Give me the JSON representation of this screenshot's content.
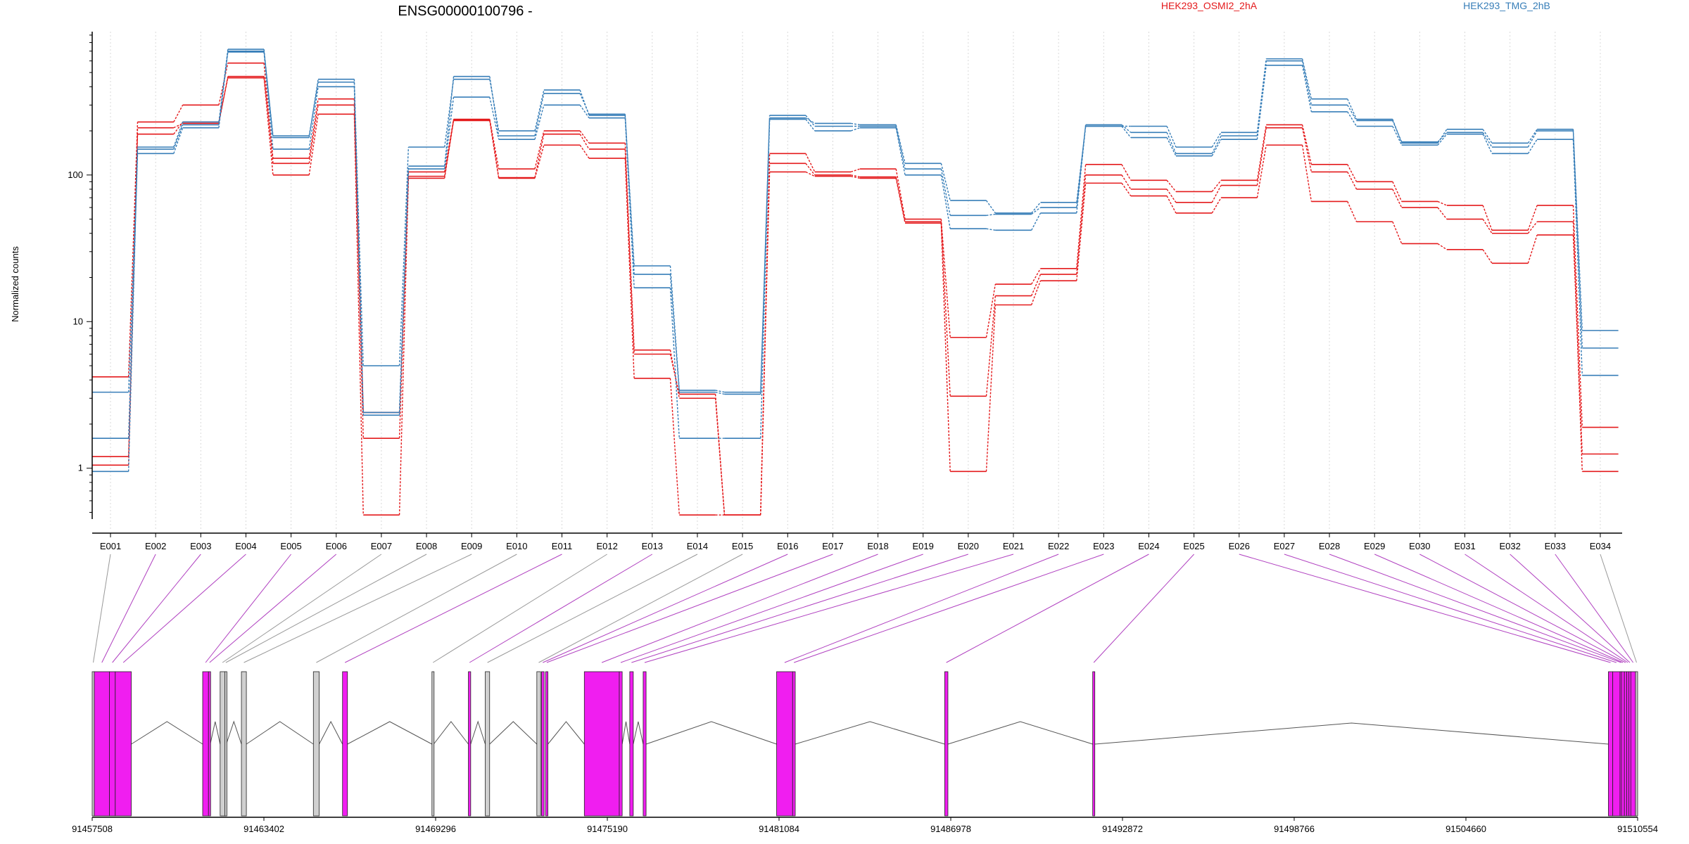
{
  "chart_data": {
    "type": "line",
    "title": "ENSG00000100796 -",
    "ylabel": "Normalized counts",
    "xlabel": "",
    "y_scale": "log",
    "ylim": [
      0.45,
      950
    ],
    "y_ticks": [
      {
        "value": 1,
        "label": "1"
      },
      {
        "value": 10,
        "label": "10"
      },
      {
        "value": 100,
        "label": "100"
      }
    ],
    "grid": "vertical dotted lines at exons",
    "legend_placement": "top-right",
    "colors": {
      "HEK293_OSMI2_2hA": "#e41a1c",
      "HEK293_TMG_2hB": "#377eb8",
      "exon_fill": "#f01ef0",
      "exon_gray": "#d0d0d0",
      "link_magenta": "#b040c0",
      "link_gray": "#999999"
    },
    "categories": [
      "E001",
      "E002",
      "E003",
      "E004",
      "E005",
      "E006",
      "E007",
      "E008",
      "E009",
      "E010",
      "E011",
      "E012",
      "E013",
      "E014",
      "E015",
      "E016",
      "E017",
      "E018",
      "E019",
      "E020",
      "E021",
      "E022",
      "E023",
      "E024",
      "E025",
      "E026",
      "E027",
      "E028",
      "E029",
      "E030",
      "E031",
      "E032",
      "E033",
      "E034"
    ],
    "series": [
      {
        "name": "HEK293_OSMI2_2hA",
        "group": 0,
        "values": [
          4.2,
          230,
          300,
          580,
          120,
          300,
          1.6,
          105,
          240,
          110,
          200,
          165,
          6.0,
          3.2,
          0.48,
          140,
          105,
          110,
          50,
          7.8,
          18,
          23,
          118,
          92,
          77,
          92,
          220,
          118,
          90,
          66,
          62,
          42,
          62,
          1.9
        ]
      },
      {
        "name": "",
        "group": 0,
        "values": [
          1.2,
          190,
          230,
          460,
          100,
          260,
          0.48,
          95,
          235,
          95,
          160,
          130,
          4.1,
          0.48,
          0.48,
          105,
          98,
          95,
          47,
          0.95,
          13,
          19,
          88,
          72,
          55,
          70,
          160,
          66,
          48,
          34,
          31,
          25,
          39,
          1.25
        ]
      },
      {
        "name": "",
        "group": 0,
        "values": [
          1.05,
          210,
          225,
          470,
          130,
          330,
          2.4,
          98,
          238,
          96,
          190,
          150,
          6.4,
          3.0,
          0.48,
          120,
          100,
          97,
          48,
          3.1,
          15,
          21,
          100,
          80,
          65,
          85,
          210,
          105,
          80,
          60,
          50,
          40,
          48,
          0.95
        ]
      },
      {
        "name": "HEK293_TMG_2hB",
        "group": 1,
        "values": [
          0.95,
          155,
          230,
          700,
          185,
          430,
          5.0,
          155,
          450,
          200,
          380,
          255,
          24,
          3.4,
          3.3,
          245,
          225,
          220,
          120,
          67,
          55,
          65,
          215,
          215,
          155,
          195,
          620,
          330,
          240,
          165,
          205,
          165,
          205,
          8.7
        ]
      },
      {
        "name": "",
        "group": 1,
        "values": [
          1.6,
          140,
          210,
          690,
          150,
          400,
          2.3,
          110,
          340,
          175,
          300,
          245,
          17,
          1.6,
          1.6,
          240,
          200,
          210,
          100,
          43,
          42,
          55,
          215,
          180,
          135,
          175,
          560,
          270,
          215,
          160,
          190,
          140,
          175,
          4.3
        ]
      },
      {
        "name": "",
        "group": 1,
        "values": [
          3.3,
          150,
          220,
          720,
          180,
          450,
          2.4,
          115,
          470,
          185,
          360,
          260,
          21,
          3.3,
          3.2,
          255,
          215,
          215,
          110,
          53,
          54,
          60,
          220,
          195,
          140,
          185,
          600,
          300,
          235,
          168,
          195,
          155,
          200,
          6.6
        ]
      }
    ],
    "genomic_axis": {
      "ticks": [
        "91457508",
        "91463402",
        "91469296",
        "91475190",
        "91481084",
        "91486978",
        "91492872",
        "91498766",
        "91504660",
        "91510554"
      ],
      "tick_values": [
        91457508,
        91463402,
        91469296,
        91475190,
        91481084,
        91486978,
        91492872,
        91498766,
        91504660,
        91510554
      ],
      "exon_blocks": [
        {
          "label": "E001",
          "start": 91457508,
          "end": 91457580,
          "kind": "gray"
        },
        {
          "label": "E002",
          "start": 91457580,
          "end": 91458100,
          "kind": "magenta"
        },
        {
          "label": "E003",
          "start": 91458100,
          "end": 91458300,
          "kind": "magenta"
        },
        {
          "label": "E004",
          "start": 91458300,
          "end": 91458850,
          "kind": "magenta"
        },
        {
          "label": "E005",
          "start": 91461300,
          "end": 91461500,
          "kind": "magenta"
        },
        {
          "label": "E006",
          "start": 91461500,
          "end": 91461560,
          "kind": "magenta"
        },
        {
          "label": "E007",
          "start": 91461900,
          "end": 91462060,
          "kind": "gray"
        },
        {
          "label": "E008",
          "start": 91462060,
          "end": 91462110,
          "kind": "gray"
        },
        {
          "label": "E009",
          "start": 91462630,
          "end": 91462800,
          "kind": "gray"
        },
        {
          "label": "E010",
          "start": 91465100,
          "end": 91465300,
          "kind": "gray"
        },
        {
          "label": "E011",
          "start": 91466100,
          "end": 91466270,
          "kind": "magenta"
        },
        {
          "label": "E012",
          "start": 91469170,
          "end": 91469230,
          "kind": "gray"
        },
        {
          "label": "E013",
          "start": 91470420,
          "end": 91470500,
          "kind": "magenta"
        },
        {
          "label": "E014",
          "start": 91471000,
          "end": 91471150,
          "kind": "gray"
        },
        {
          "label": "E015",
          "start": 91472770,
          "end": 91472900,
          "kind": "gray"
        },
        {
          "label": "E016",
          "start": 91472930,
          "end": 91473020,
          "kind": "magenta"
        },
        {
          "label": "E017",
          "start": 91473070,
          "end": 91473150,
          "kind": "magenta"
        },
        {
          "label": "E018",
          "start": 91474400,
          "end": 91475600,
          "kind": "magenta"
        },
        {
          "label": "E019",
          "start": 91475600,
          "end": 91475700,
          "kind": "magenta"
        },
        {
          "label": "E020",
          "start": 91475960,
          "end": 91476080,
          "kind": "magenta"
        },
        {
          "label": "E021",
          "start": 91476420,
          "end": 91476520,
          "kind": "magenta"
        },
        {
          "label": "E022",
          "start": 91481000,
          "end": 91481550,
          "kind": "magenta"
        },
        {
          "label": "E023",
          "start": 91481550,
          "end": 91481640,
          "kind": "magenta"
        },
        {
          "label": "E024",
          "start": 91486770,
          "end": 91486880,
          "kind": "magenta"
        },
        {
          "label": "E025",
          "start": 91491850,
          "end": 91491920,
          "kind": "magenta"
        },
        {
          "label": "E026",
          "start": 91509550,
          "end": 91509700,
          "kind": "magenta"
        },
        {
          "label": "E027",
          "start": 91509700,
          "end": 91509950,
          "kind": "magenta"
        },
        {
          "label": "E028",
          "start": 91509950,
          "end": 91510000,
          "kind": "magenta"
        },
        {
          "label": "E029",
          "start": 91510000,
          "end": 91510100,
          "kind": "magenta"
        },
        {
          "label": "E030",
          "start": 91510100,
          "end": 91510180,
          "kind": "magenta"
        },
        {
          "label": "E031",
          "start": 91510180,
          "end": 91510250,
          "kind": "magenta"
        },
        {
          "label": "E032",
          "start": 91510250,
          "end": 91510320,
          "kind": "magenta"
        },
        {
          "label": "E033",
          "start": 91510320,
          "end": 91510480,
          "kind": "magenta"
        },
        {
          "label": "E034",
          "start": 91510480,
          "end": 91510554,
          "kind": "gray"
        }
      ]
    }
  }
}
